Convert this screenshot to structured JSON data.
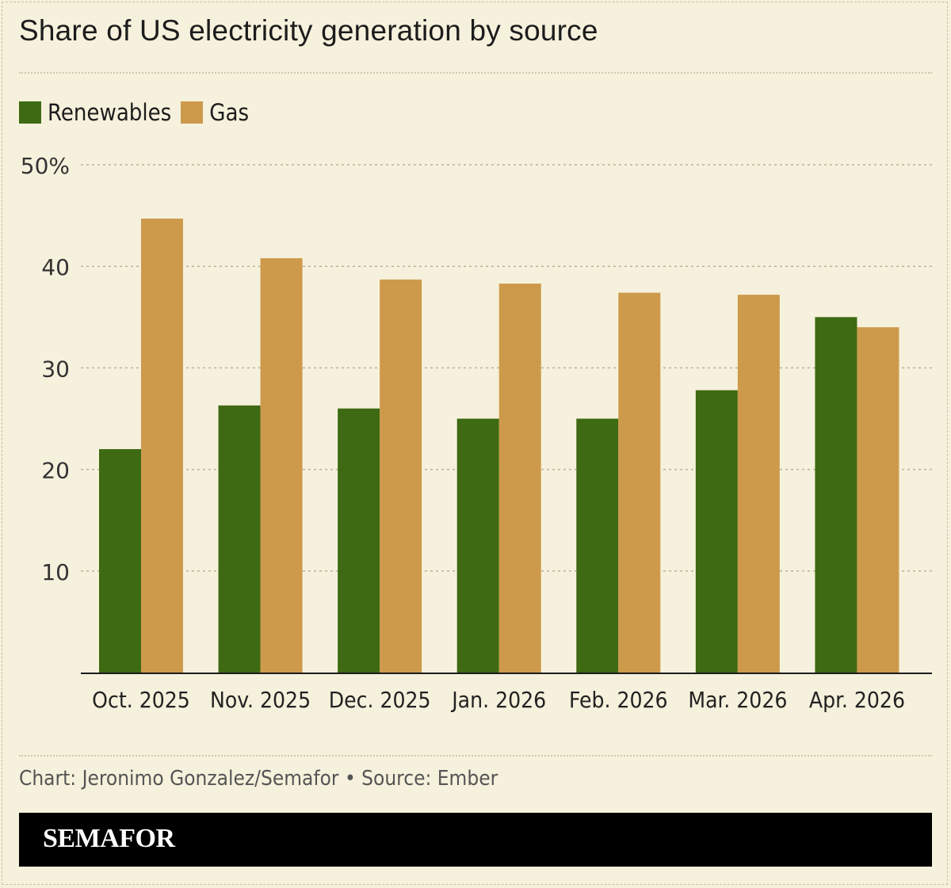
{
  "title": "Share of US electricity generation by source",
  "legend": [
    {
      "label": "Renewables",
      "color": "#3d6a12"
    },
    {
      "label": "Gas",
      "color": "#cd9a4c"
    }
  ],
  "chart_data": {
    "type": "bar",
    "categories": [
      "Oct. 2025",
      "Nov. 2025",
      "Dec. 2025",
      "Jan. 2026",
      "Feb. 2026",
      "Mar. 2026",
      "Apr. 2026"
    ],
    "series": [
      {
        "name": "Renewables",
        "color": "#3d6a12",
        "values": [
          22,
          26.3,
          26,
          25,
          25,
          27.8,
          35
        ]
      },
      {
        "name": "Gas",
        "color": "#cd9a4c",
        "values": [
          44.7,
          40.8,
          38.7,
          38.3,
          37.4,
          37.2,
          34
        ]
      }
    ],
    "yticks": [
      "10",
      "20",
      "30",
      "40",
      "50%"
    ],
    "ytick_values": [
      10,
      20,
      30,
      40,
      50
    ],
    "ylim": [
      0,
      50
    ],
    "grid": true,
    "legend_position": "top-left"
  },
  "credit": "Chart: Jeronimo Gonzalez/Semafor • Source: Ember",
  "brand": "SEMAFOR"
}
